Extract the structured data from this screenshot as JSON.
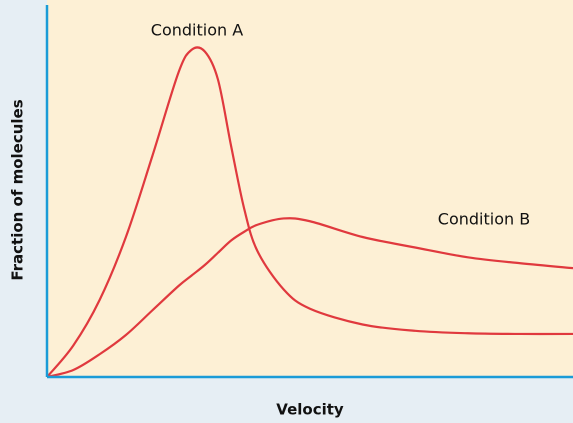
{
  "chart_data": {
    "type": "line",
    "x_label": "Velocity",
    "y_label": "Fraction of molecules",
    "x": [
      0,
      0.5,
      1,
      1.5,
      2,
      2.5,
      2.75,
      3,
      3.25,
      3.5,
      3.75,
      4,
      4.5,
      5,
      6,
      7,
      8,
      9,
      10
    ],
    "xlim": [
      0,
      10
    ],
    "ylim": [
      0,
      10
    ],
    "series": [
      {
        "name": "Condition A",
        "color": "#e0393e",
        "values": [
          0,
          0.9,
          2.2,
          4.0,
          6.3,
          8.7,
          9.35,
          9.3,
          8.5,
          6.6,
          4.8,
          3.6,
          2.5,
          1.95,
          1.5,
          1.32,
          1.25,
          1.23,
          1.23
        ]
      },
      {
        "name": "Condition B",
        "color": "#e0393e",
        "values": [
          0,
          0.2,
          0.65,
          1.2,
          1.9,
          2.6,
          2.9,
          3.2,
          3.55,
          3.9,
          4.15,
          4.35,
          4.53,
          4.45,
          4.0,
          3.7,
          3.42,
          3.25,
          3.11
        ]
      }
    ],
    "label_positions": null,
    "axis_color": "#1a9bd7",
    "plot_background": "#fdf0d5"
  }
}
